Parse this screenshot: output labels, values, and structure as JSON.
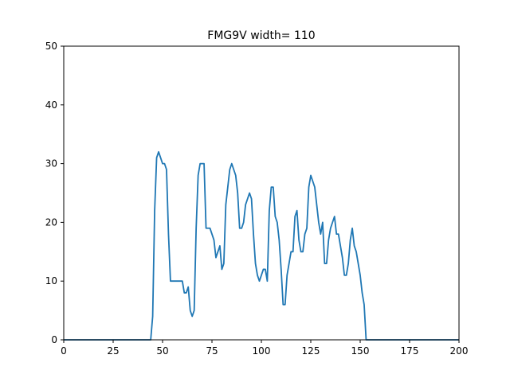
{
  "chart_data": {
    "type": "line",
    "title": "FMG9V width= 110",
    "xlabel": "",
    "ylabel": "",
    "xlim": [
      0,
      200
    ],
    "ylim": [
      0,
      50
    ],
    "x_ticks": [
      0,
      25,
      50,
      75,
      100,
      125,
      150,
      175,
      200
    ],
    "y_ticks": [
      0,
      10,
      20,
      30,
      40,
      50
    ],
    "grid": false,
    "legend": "none",
    "series": [
      {
        "color": "#1f77b4",
        "x": [
          0,
          44,
          45,
          46,
          47,
          48,
          49,
          50,
          51,
          52,
          53,
          54,
          55,
          56,
          57,
          58,
          59,
          60,
          61,
          62,
          63,
          64,
          65,
          66,
          67,
          68,
          69,
          70,
          71,
          72,
          73,
          74,
          75,
          76,
          77,
          78,
          79,
          80,
          81,
          82,
          83,
          84,
          85,
          86,
          87,
          88,
          89,
          90,
          91,
          92,
          93,
          94,
          95,
          96,
          97,
          98,
          99,
          100,
          101,
          102,
          103,
          104,
          105,
          106,
          107,
          108,
          109,
          110,
          111,
          112,
          113,
          114,
          115,
          116,
          117,
          118,
          119,
          120,
          121,
          122,
          123,
          124,
          125,
          126,
          127,
          128,
          129,
          130,
          131,
          132,
          133,
          134,
          135,
          136,
          137,
          138,
          139,
          140,
          141,
          142,
          143,
          144,
          145,
          146,
          147,
          148,
          149,
          150,
          151,
          152,
          153,
          154,
          155,
          200
        ],
        "y": [
          0,
          0,
          4,
          22,
          31,
          32,
          31,
          30,
          30,
          29,
          18,
          10,
          10,
          10,
          10,
          10,
          10,
          10,
          8,
          8,
          9,
          5,
          4,
          5,
          19,
          28,
          30,
          30,
          30,
          19,
          19,
          19,
          18,
          17,
          14,
          15,
          16,
          12,
          13,
          23,
          26,
          29,
          30,
          29,
          28,
          25,
          19,
          19,
          20,
          23,
          24,
          25,
          24,
          18,
          13,
          11,
          10,
          11,
          12,
          12,
          10,
          22,
          26,
          26,
          21,
          20,
          17,
          12,
          6,
          6,
          11,
          13,
          15,
          15,
          21,
          22,
          17,
          15,
          15,
          18,
          19,
          26,
          28,
          27,
          26,
          23,
          20,
          18,
          20,
          13,
          13,
          17,
          19,
          20,
          21,
          18,
          18,
          16,
          14,
          11,
          11,
          13,
          17,
          19,
          16,
          15,
          13,
          11,
          8,
          6,
          0,
          0,
          0,
          0
        ]
      }
    ]
  }
}
